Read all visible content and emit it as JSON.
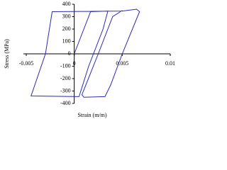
{
  "chart_data": {
    "type": "line",
    "x_label": "Strain (m/m)",
    "y_label": "Stress (MPa)",
    "xlim": [
      -0.005,
      0.01
    ],
    "ylim": [
      -400,
      400
    ],
    "xticks": [
      -0.005,
      0,
      0.005,
      0.01
    ],
    "yticks": [
      -400,
      -300,
      -200,
      -100,
      0,
      100,
      200,
      300,
      400
    ],
    "series": [
      {
        "color": "#2b2bb8",
        "x": [
          0,
          0.0017,
          0.0035,
          0.003,
          0.0015,
          0.0005,
          -0.0045,
          -0.003,
          -0.0023,
          0.005,
          0.0065,
          0.0068,
          0.005,
          0.0038,
          0.0032,
          0.001,
          0.0008,
          0.0025,
          0.004,
          0.005
        ],
        "values": [
          0,
          340,
          345,
          200,
          -100,
          -345,
          -340,
          0,
          340,
          345,
          360,
          340,
          0,
          -250,
          -345,
          -350,
          -330,
          0,
          300,
          350
        ]
      }
    ]
  }
}
